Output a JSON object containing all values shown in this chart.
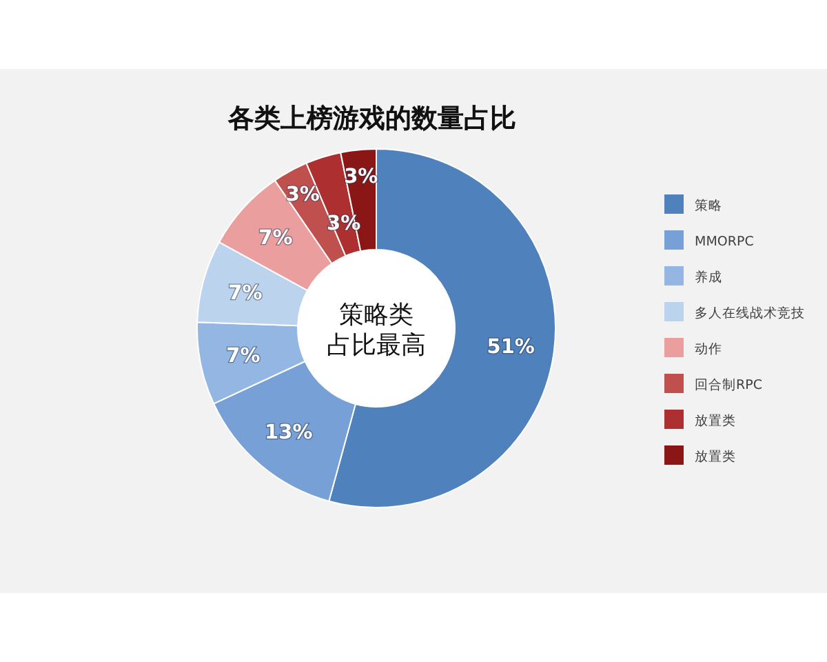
{
  "chart_data": {
    "type": "donut",
    "title": "各类上榜游戏的数量占比",
    "categories": [
      "策略",
      "MMORPC",
      "养成",
      "多人在线战术竞技",
      "动作",
      "回合制RPC",
      "放置类",
      "放置类"
    ],
    "values": [
      51,
      13,
      7,
      7,
      7,
      3,
      3,
      3
    ],
    "colors": [
      "#4f81bd",
      "#77a0d6",
      "#93b6e2",
      "#bcd3ee",
      "#ea9e9e",
      "#c0504d",
      "#ad2f2f",
      "#8b1616"
    ],
    "value_labels": [
      "51%",
      "13%",
      "7%",
      "7%",
      "7%",
      "3%",
      "3%",
      "3%"
    ],
    "annotations": [
      "策略类",
      "占比最高"
    ],
    "legend": "right"
  }
}
